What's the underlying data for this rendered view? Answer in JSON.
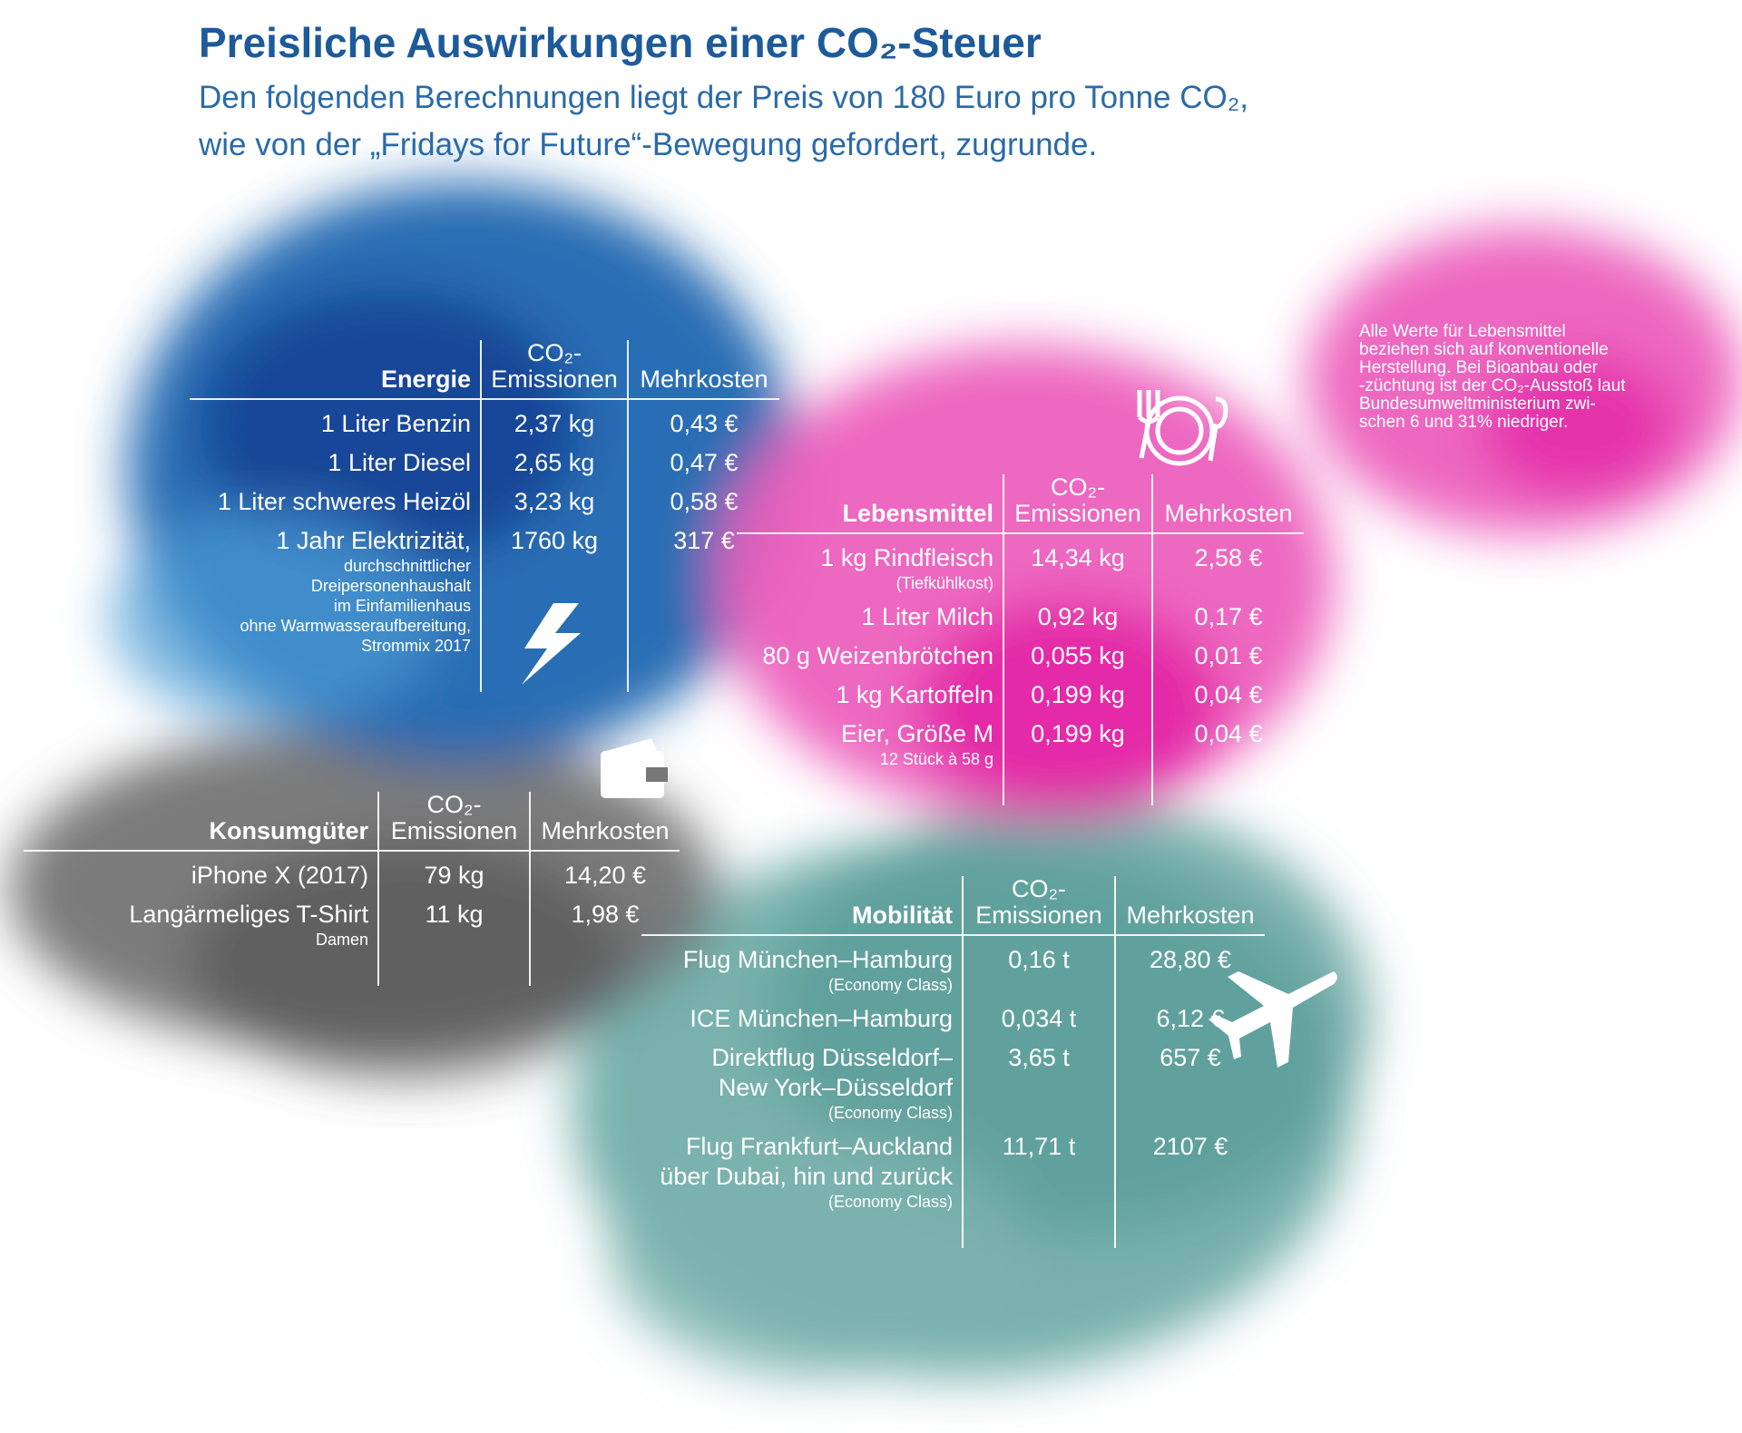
{
  "header": {
    "title": "Preisliche Auswirkungen einer CO₂-Steuer",
    "subtitle": [
      "Den folgenden Berechnungen liegt der Preis von 180 Euro pro Tonne CO₂,",
      "wie von der „Fridays for Future“-Bewegung gefordert, zugrunde."
    ]
  },
  "note": [
    "Alle Werte für Lebensmittel",
    "beziehen sich auf konventionelle",
    "Herstellung. Bei Bioanbau oder",
    "-züchtung ist der CO₂-Ausstoß laut",
    "Bundesumweltministerium zwi-",
    "schen 6 und 31% niedriger."
  ],
  "tables": [
    {
      "name": "Energie",
      "emissions_header": [
        "CO₂-",
        "Emissionen"
      ],
      "cost_header": "Mehrkosten",
      "rows": [
        {
          "item": [
            "1 Liter Benzin"
          ],
          "emission": "2,37 kg",
          "cost": "0,43 €"
        },
        {
          "item": [
            "1 Liter Diesel"
          ],
          "emission": "2,65 kg",
          "cost": "0,47 €"
        },
        {
          "item": [
            "1 Liter schweres Heizöl"
          ],
          "emission": "3,23 kg",
          "cost": "0,58 €"
        },
        {
          "item": [
            "1 Jahr Elektrizität,"
          ],
          "note": [
            "durchschnittlicher",
            "Dreipersonenhaushalt",
            "im Einfamilienhaus",
            "ohne Warmwasseraufbereitung,",
            "Strommix 2017"
          ],
          "emission": "1760 kg",
          "cost": "317 €"
        }
      ]
    },
    {
      "name": "Lebensmittel",
      "emissions_header": [
        "CO₂-",
        "Emissionen"
      ],
      "cost_header": "Mehrkosten",
      "rows": [
        {
          "item": [
            "1 kg Rindfleisch"
          ],
          "note": [
            "(Tiefkühlkost)"
          ],
          "emission": "14,34 kg",
          "cost": "2,58 €"
        },
        {
          "item": [
            "1 Liter Milch"
          ],
          "emission": "0,92 kg",
          "cost": "0,17 €"
        },
        {
          "item": [
            "80 g Weizenbrötchen"
          ],
          "emission": "0,055 kg",
          "cost": "0,01 €"
        },
        {
          "item": [
            "1 kg Kartoffeln"
          ],
          "emission": "0,199 kg",
          "cost": "0,04 €"
        },
        {
          "item": [
            "Eier, Größe M"
          ],
          "note": [
            "12 Stück à 58 g"
          ],
          "emission": "0,199 kg",
          "cost": "0,04 €"
        }
      ]
    },
    {
      "name": "Konsumgüter",
      "emissions_header": [
        "CO₂-",
        "Emissionen"
      ],
      "cost_header": "Mehrkosten",
      "rows": [
        {
          "item": [
            "iPhone X (2017)"
          ],
          "emission": "79 kg",
          "cost": "14,20 €"
        },
        {
          "item": [
            "Langärmeliges T-Shirt"
          ],
          "note": [
            "Damen"
          ],
          "emission": "11 kg",
          "cost": "1,98 €"
        }
      ]
    },
    {
      "name": "Mobilität",
      "emissions_header": [
        "CO₂-",
        "Emissionen"
      ],
      "cost_header": "Mehrkosten",
      "rows": [
        {
          "item": [
            "Flug München–Hamburg"
          ],
          "note": [
            "(Economy Class)"
          ],
          "emission": "0,16 t",
          "cost": "28,80 €"
        },
        {
          "item": [
            "ICE München–Hamburg"
          ],
          "emission": "0,034 t",
          "cost": "6,12 €"
        },
        {
          "item": [
            "Direktflug Düsseldorf–",
            "New York–Düsseldorf"
          ],
          "note": [
            "(Economy Class)"
          ],
          "emission": "3,65 t",
          "cost": "657 €"
        },
        {
          "item": [
            "Flug Frankfurt–Auckland",
            "über Dubai, hin und zurück"
          ],
          "note": [
            "(Economy Class)"
          ],
          "emission": "11,71 t",
          "cost": "2107 €"
        }
      ]
    }
  ]
}
